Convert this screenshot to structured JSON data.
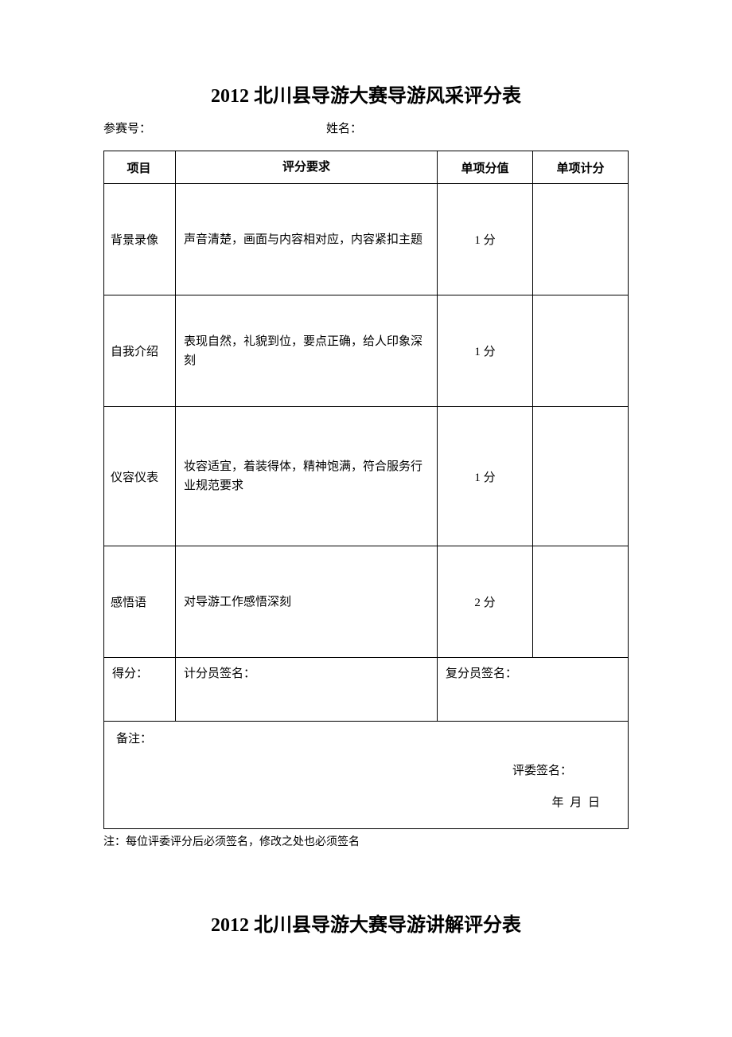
{
  "title1": "2012 北川县导游大赛导游风采评分表",
  "headerFields": {
    "contestant_no_label": "参赛号：",
    "name_label": "姓名："
  },
  "tableHeaders": {
    "project": "项目",
    "requirement": "评分要求",
    "unitScore": "单项分值",
    "itemScore": "单项计分"
  },
  "rows": [
    {
      "project": "背景录像",
      "requirement": "声音清楚，画面与内容相对应，内容紧扣主题",
      "unitScore": "1 分",
      "itemScore": "",
      "heightClass": "data-row"
    },
    {
      "project": "自我介绍",
      "requirement": "表现自然，礼貌到位，要点正确，给人印象深刻",
      "unitScore": "1 分",
      "itemScore": "",
      "heightClass": "data-row"
    },
    {
      "project": "仪容仪表",
      "requirement": "妆容适宜，着装得体，精神饱满，符合服务行业规范要求",
      "unitScore": "1 分",
      "itemScore": "",
      "heightClass": "data-row-tall"
    },
    {
      "project": "感悟语",
      "requirement": "对导游工作感悟深刻",
      "unitScore": "2 分",
      "itemScore": "",
      "heightClass": "data-row"
    }
  ],
  "scoreRow": {
    "score_label": "得分：",
    "scorer_label": "计分员签名：",
    "reviewer_label": "复分员签名："
  },
  "remarks": {
    "label": "备注：",
    "judge_sign": "评委签名：",
    "date": "年   月   日"
  },
  "footerNote": "注：每位评委评分后必须签名，修改之处也必须签名",
  "title2": "2012 北川县导游大赛导游讲解评分表"
}
